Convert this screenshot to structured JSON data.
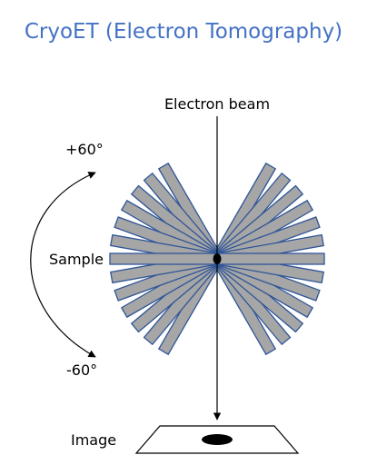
{
  "title": "CryoET (Electron Tomography)",
  "labels": {
    "beam": "Electron beam",
    "plus_angle": "+60°",
    "minus_angle": "-60°",
    "sample": "Sample",
    "image": "Image"
  },
  "tilt_series": {
    "angles_deg": [
      -60,
      -50,
      -40,
      -30,
      -20,
      -10,
      0,
      10,
      20,
      30,
      40,
      50,
      60
    ],
    "range_deg": [
      -60,
      60
    ]
  },
  "colors": {
    "title": "#4472c4",
    "slab_fill": "#a6a6a6",
    "slab_stroke": "#2f5597",
    "line": "#000000"
  }
}
